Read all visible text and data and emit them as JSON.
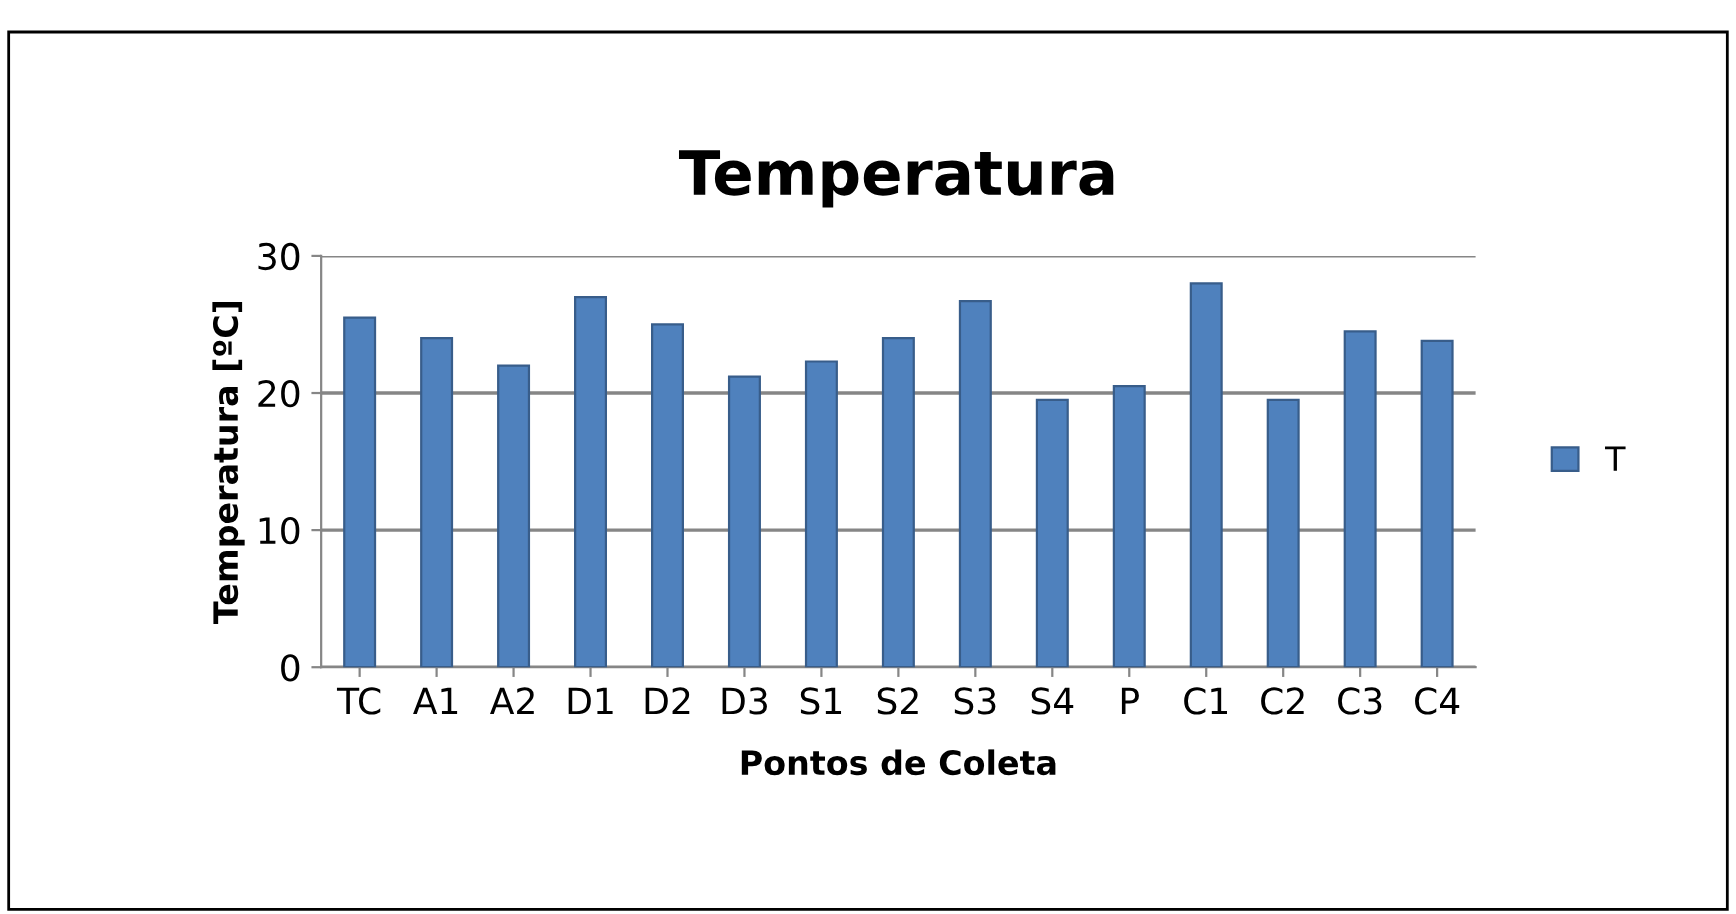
{
  "chart_data": {
    "type": "bar",
    "title": "Temperatura",
    "xlabel": "Pontos de Coleta",
    "ylabel": "Temperatura [ºC]",
    "categories": [
      "TC",
      "A1",
      "A2",
      "D1",
      "D2",
      "D3",
      "S1",
      "S2",
      "S3",
      "S4",
      "P",
      "C1",
      "C2",
      "C3",
      "C4"
    ],
    "series": [
      {
        "name": "T",
        "color": "#4f81bd",
        "values": [
          25.5,
          24,
          22,
          27,
          25,
          21.2,
          22.3,
          24,
          26.7,
          19.5,
          20.5,
          28,
          19.5,
          24.5,
          23.8
        ]
      }
    ],
    "ylim": [
      0,
      30
    ],
    "yticks": [
      0,
      10,
      20,
      30
    ],
    "grid": "y",
    "legend": "right"
  }
}
